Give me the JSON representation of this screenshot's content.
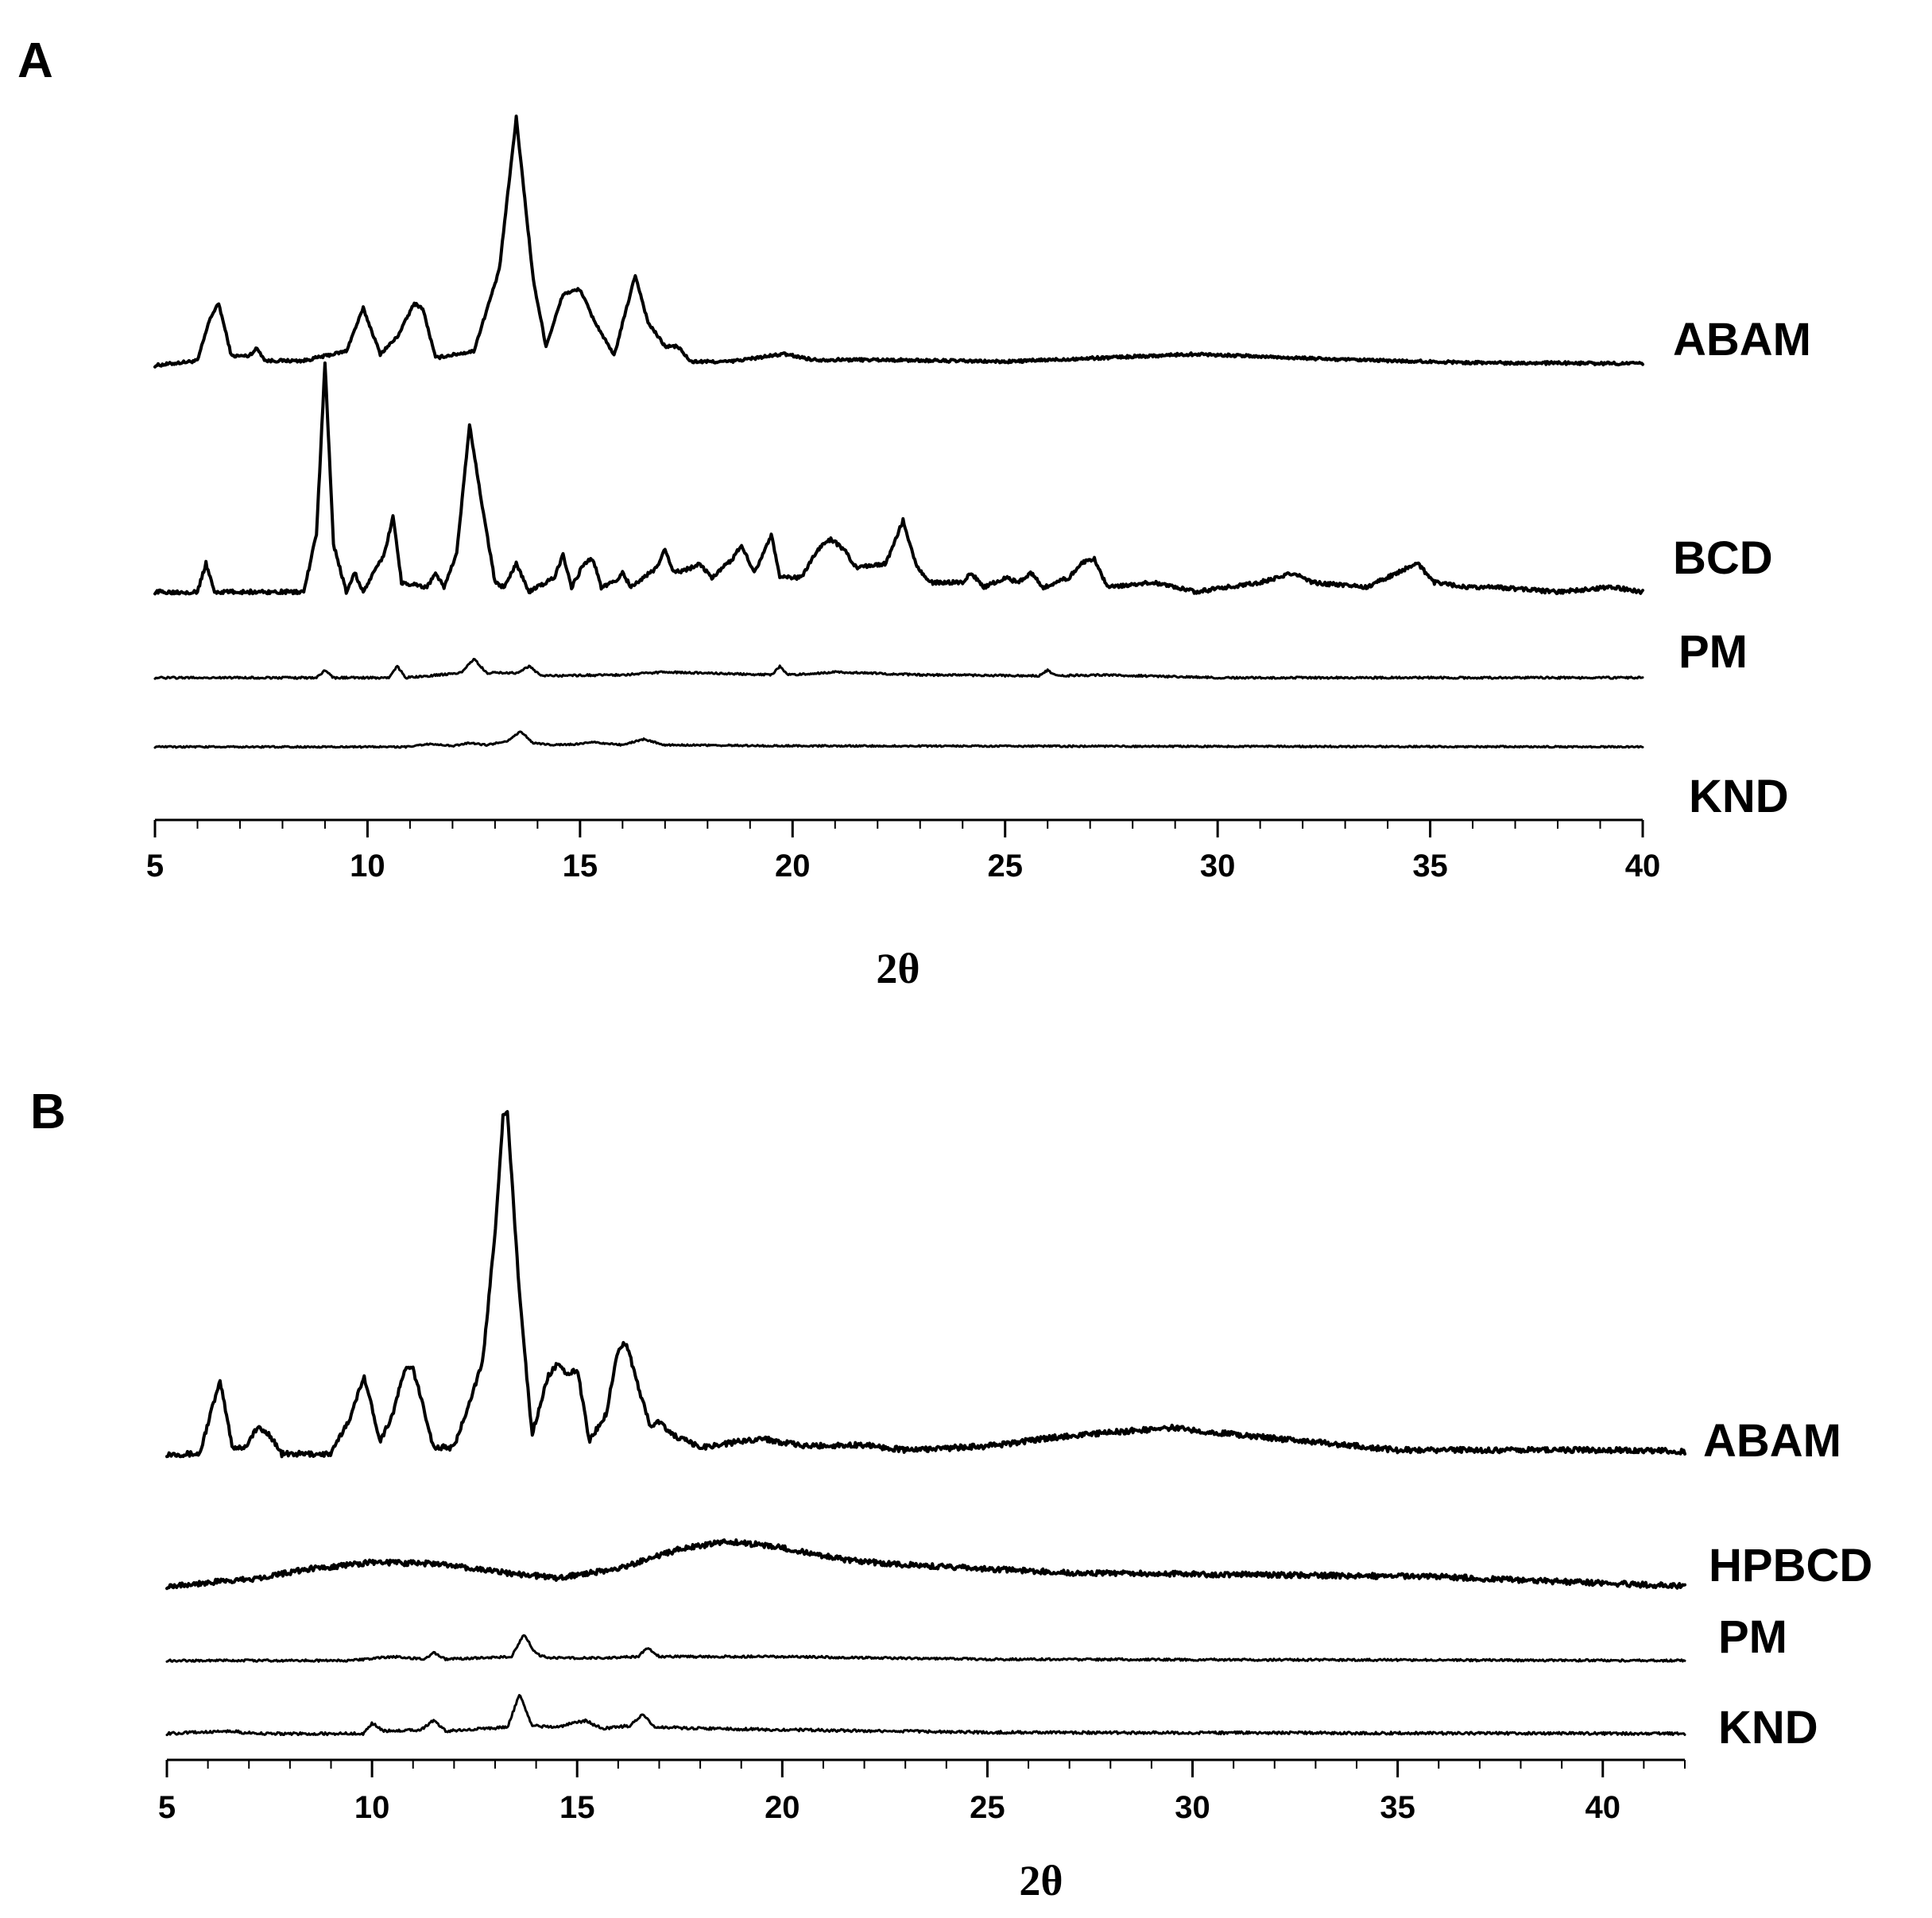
{
  "chart_data": [
    {
      "panel": "A",
      "type": "line",
      "xlabel": "2θ",
      "xlim": [
        5,
        40
      ],
      "xticks": [
        5,
        10,
        15,
        20,
        25,
        30,
        35,
        40
      ],
      "yaxis": "none",
      "series": [
        {
          "name": "ABAM",
          "baseline": 0,
          "x": [
            5,
            6,
            6.3,
            6.5,
            6.8,
            7.2,
            7.4,
            7.6,
            8.5,
            9.5,
            9.9,
            10.3,
            10.7,
            11.1,
            11.3,
            11.6,
            12.5,
            13.1,
            13.5,
            13.9,
            14.2,
            14.6,
            15.0,
            15.3,
            15.8,
            16.3,
            16.6,
            17.0,
            17.3,
            17.6,
            18.5,
            19.8,
            20.5,
            22,
            25,
            29.5,
            33,
            36,
            40
          ],
          "y": [
            0,
            0.05,
            0.5,
            0.65,
            0.1,
            0.1,
            0.18,
            0.05,
            0.05,
            0.15,
            0.6,
            0.12,
            0.3,
            0.65,
            0.6,
            0.08,
            0.15,
            1.0,
            2.6,
            0.9,
            0.2,
            0.75,
            0.8,
            0.5,
            0.1,
            0.95,
            0.45,
            0.2,
            0.2,
            0.04,
            0.04,
            0.12,
            0.06,
            0.06,
            0.04,
            0.12,
            0.06,
            0.03,
            0.02
          ]
        },
        {
          "name": "BCD",
          "baseline": 0,
          "x": [
            5,
            6.0,
            6.2,
            6.4,
            8.5,
            8.8,
            9.0,
            9.2,
            9.5,
            9.7,
            9.9,
            10.4,
            10.6,
            10.8,
            11.4,
            11.6,
            11.8,
            12.1,
            12.4,
            12.7,
            13.0,
            13.2,
            13.5,
            13.8,
            14.4,
            14.6,
            14.8,
            15.1,
            15.3,
            15.5,
            15.8,
            16.0,
            16.2,
            16.8,
            17.0,
            17.2,
            17.6,
            17.8,
            18.1,
            18.6,
            18.8,
            19.1,
            19.3,
            19.5,
            19.7,
            20.2,
            20.6,
            20.9,
            21.2,
            21.5,
            22.2,
            22.6,
            22.9,
            23.2,
            24,
            24.2,
            24.5,
            25,
            25.3,
            25.6,
            25.9,
            26.5,
            26.8,
            27.1,
            27.4,
            28.5,
            29.5,
            30.2,
            31,
            31.8,
            32.2,
            33.5,
            34.7,
            35.1,
            35.8,
            36.5,
            38,
            39.3,
            40
          ],
          "y": [
            0,
            0,
            0.3,
            0,
            0,
            0.6,
            2.4,
            0.5,
            0,
            0.2,
            0,
            0.4,
            0.8,
            0.1,
            0.05,
            0.2,
            0.05,
            0.4,
            1.75,
            0.9,
            0.1,
            0.05,
            0.3,
            0,
            0.15,
            0.4,
            0.05,
            0.3,
            0.35,
            0.05,
            0.1,
            0.2,
            0.05,
            0.25,
            0.45,
            0.2,
            0.25,
            0.3,
            0.15,
            0.35,
            0.5,
            0.2,
            0.4,
            0.6,
            0.15,
            0.15,
            0.45,
            0.55,
            0.45,
            0.25,
            0.3,
            0.75,
            0.3,
            0.1,
            0.1,
            0.2,
            0.05,
            0.15,
            0.1,
            0.2,
            0.05,
            0.15,
            0.3,
            0.35,
            0.05,
            0.1,
            0,
            0.05,
            0.1,
            0.2,
            0.1,
            0.05,
            0.3,
            0.1,
            0.05,
            0.05,
            0,
            0.05,
            0
          ],
          "noise": 0.02
        },
        {
          "name": "PM",
          "baseline": 0,
          "x": [
            5,
            8.8,
            9.0,
            9.2,
            10.5,
            10.7,
            10.9,
            12.2,
            12.5,
            12.8,
            13.5,
            13.8,
            14.1,
            16,
            17,
            19.5,
            19.7,
            19.9,
            21,
            23,
            25.8,
            26.0,
            26.2,
            27.3,
            30,
            40
          ],
          "y": [
            0,
            0,
            0.08,
            0,
            0,
            0.12,
            0,
            0.05,
            0.2,
            0.05,
            0.05,
            0.12,
            0.02,
            0.03,
            0.06,
            0.03,
            0.12,
            0.03,
            0.06,
            0.03,
            0.02,
            0.08,
            0.02,
            0.03,
            0,
            0
          ],
          "noise": 0.01
        },
        {
          "name": "KND",
          "baseline": 0,
          "x": [
            5,
            11,
            11.4,
            12,
            12.4,
            12.8,
            13.3,
            13.6,
            13.9,
            14.3,
            15,
            15.3,
            16,
            16.5,
            17,
            20,
            40
          ],
          "y": [
            0,
            0,
            0.03,
            0.01,
            0.04,
            0.02,
            0.06,
            0.16,
            0.04,
            0.02,
            0.03,
            0.05,
            0.02,
            0.08,
            0.02,
            0.01,
            0
          ],
          "noise": 0.008
        }
      ]
    },
    {
      "panel": "B",
      "type": "line",
      "xlabel": "2θ",
      "xlim": [
        5,
        42
      ],
      "xticks": [
        5,
        10,
        15,
        20,
        25,
        30,
        35,
        40
      ],
      "yaxis": "none",
      "series": [
        {
          "name": "ABAM",
          "baseline": 0,
          "x": [
            5,
            5.8,
            6.1,
            6.3,
            6.6,
            6.9,
            7.2,
            7.5,
            7.8,
            9.0,
            9.5,
            9.8,
            10.2,
            10.5,
            10.8,
            11.0,
            11.3,
            11.5,
            12.0,
            12.7,
            13.0,
            13.2,
            13.3,
            13.6,
            13.9,
            14.3,
            14.5,
            14.8,
            15.0,
            15.3,
            15.7,
            16.0,
            16.2,
            16.5,
            16.8,
            17.0,
            17.3,
            18,
            19.5,
            20.5,
            22,
            23,
            25,
            27,
            29.5,
            31,
            33,
            35,
            40,
            42
          ],
          "y": [
            0,
            0,
            0.35,
            0.55,
            0.05,
            0.05,
            0.2,
            0.15,
            0,
            0,
            0.3,
            0.6,
            0.1,
            0.3,
            0.65,
            0.65,
            0.3,
            0.05,
            0.05,
            0.7,
            1.7,
            2.6,
            2.6,
            1.2,
            0.15,
            0.6,
            0.68,
            0.6,
            0.65,
            0.1,
            0.3,
            0.8,
            0.85,
            0.5,
            0.2,
            0.25,
            0.15,
            0.05,
            0.12,
            0.06,
            0.07,
            0.03,
            0.06,
            0.14,
            0.2,
            0.15,
            0.09,
            0.03,
            0.03,
            0.02
          ],
          "noise": 0.02
        },
        {
          "name": "HPBCD",
          "baseline": 0,
          "x": [
            5,
            7,
            8.5,
            10,
            11.5,
            13,
            14.5,
            16,
            17.5,
            18.7,
            19.8,
            21.5,
            23,
            25,
            27,
            30,
            33,
            36,
            40,
            42
          ],
          "y": [
            0,
            0.05,
            0.13,
            0.18,
            0.17,
            0.11,
            0.06,
            0.13,
            0.28,
            0.34,
            0.3,
            0.2,
            0.16,
            0.13,
            0.1,
            0.09,
            0.08,
            0.07,
            0.02,
            0
          ],
          "noise": 0.02
        },
        {
          "name": "PM",
          "baseline": 0,
          "x": [
            5,
            9.5,
            10.5,
            11.3,
            11.5,
            11.8,
            13.4,
            13.7,
            14.0,
            14.3,
            15.5,
            16.5,
            16.7,
            17.0,
            18,
            20,
            25,
            42
          ],
          "y": [
            0,
            0,
            0.03,
            0.01,
            0.06,
            0.01,
            0.03,
            0.2,
            0.05,
            0.02,
            0.02,
            0.03,
            0.1,
            0.03,
            0.03,
            0.03,
            0.01,
            0
          ],
          "noise": 0.008
        },
        {
          "name": "KND",
          "baseline": 0,
          "x": [
            5,
            6.5,
            7.2,
            9.8,
            10.0,
            10.3,
            11.2,
            11.5,
            11.8,
            13.3,
            13.6,
            13.9,
            14.5,
            15.2,
            15.6,
            16.3,
            16.6,
            16.9,
            18,
            20,
            25,
            42
          ],
          "y": [
            0,
            0.02,
            0,
            0,
            0.08,
            0.02,
            0.03,
            0.1,
            0.02,
            0.05,
            0.3,
            0.06,
            0.05,
            0.1,
            0.04,
            0.06,
            0.15,
            0.05,
            0.04,
            0.03,
            0.01,
            0
          ],
          "noise": 0.01
        }
      ]
    }
  ]
}
